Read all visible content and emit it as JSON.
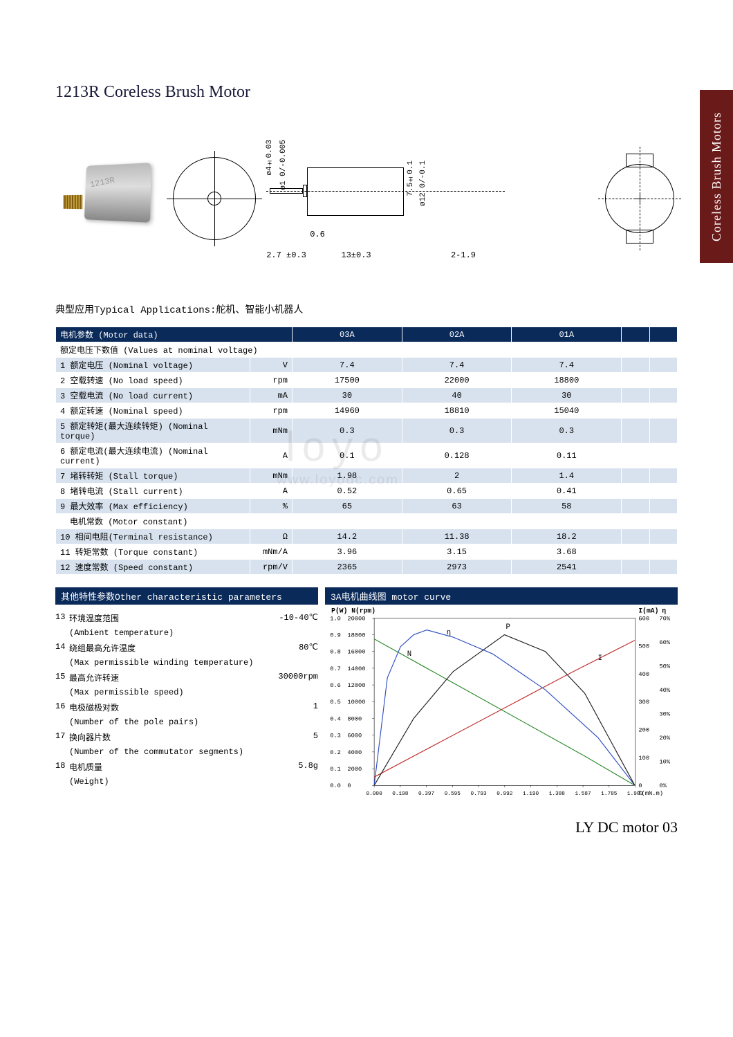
{
  "title": "1213R Coreless Brush Motor",
  "side_tab": "Coreless Brush Motors",
  "applications": "典型应用Typical Applications:舵机、智能小机器人",
  "diagram": {
    "dims": {
      "shaft_dia": "ø4±0.03",
      "shaft_inner": "ø1 0/-0.005",
      "body_height": "7.5±0.1",
      "body_dia": "ø12 0/-0.1",
      "shaft_len": "2.7 ±0.3",
      "step": "0.6",
      "body_len": "13±0.3",
      "tab_len": "2-1.9"
    },
    "motor_marking": "1213R"
  },
  "motor_table": {
    "header": "电机参数 (Motor data)",
    "cols": [
      "03A",
      "02A",
      "01A",
      "",
      ""
    ],
    "section1": "额定电压下数值 (Values at nominal voltage)",
    "rows": [
      {
        "n": "1",
        "label": "额定电压 (Nominal voltage)",
        "unit": "V",
        "v": [
          "7.4",
          "7.4",
          "7.4",
          "",
          ""
        ],
        "shade": true
      },
      {
        "n": "2",
        "label": "空载转速 (No load speed)",
        "unit": "rpm",
        "v": [
          "17500",
          "22000",
          "18800",
          "",
          ""
        ],
        "shade": false
      },
      {
        "n": "3",
        "label": "空载电流 (No load current)",
        "unit": "mA",
        "v": [
          "30",
          "40",
          "30",
          "",
          ""
        ],
        "shade": true
      },
      {
        "n": "4",
        "label": "额定转速 (Nominal speed)",
        "unit": "rpm",
        "v": [
          "14960",
          "18810",
          "15040",
          "",
          ""
        ],
        "shade": false
      },
      {
        "n": "5",
        "label": "额定转矩(最大连续转矩) (Nominal torque)",
        "unit": "mNm",
        "v": [
          "0.3",
          "0.3",
          "0.3",
          "",
          ""
        ],
        "shade": true
      },
      {
        "n": "6",
        "label": "额定电流(最大连续电流) (Nominal current)",
        "unit": "A",
        "v": [
          "0.1",
          "0.128",
          "0.11",
          "",
          ""
        ],
        "shade": false
      },
      {
        "n": "7",
        "label": "堵转转矩 (Stall torque)",
        "unit": "mNm",
        "v": [
          "1.98",
          "2",
          "1.4",
          "",
          ""
        ],
        "shade": true
      },
      {
        "n": "8",
        "label": "堵转电流 (Stall current)",
        "unit": "A",
        "v": [
          "0.52",
          "0.65",
          "0.41",
          "",
          ""
        ],
        "shade": false
      },
      {
        "n": "9",
        "label": "最大效率 (Max efficiency)",
        "unit": "%",
        "v": [
          "65",
          "63",
          "58",
          "",
          ""
        ],
        "shade": true
      }
    ],
    "section2": "电机常数 (Motor constant)",
    "rows2": [
      {
        "n": "10",
        "label": "相间电阻(Terminal resistance)",
        "unit": "Ω",
        "v": [
          "14.2",
          "11.38",
          "18.2",
          "",
          ""
        ],
        "shade": true
      },
      {
        "n": "11",
        "label": "转矩常数 (Torque constant)",
        "unit": "mNm/A",
        "v": [
          "3.96",
          "3.15",
          "3.68",
          "",
          ""
        ],
        "shade": false
      },
      {
        "n": "12",
        "label": "速度常数 (Speed constant)",
        "unit": "rpm/V",
        "v": [
          "2365",
          "2973",
          "2541",
          "",
          ""
        ],
        "shade": true
      }
    ]
  },
  "other_header": "其他特性参数Other characteristic parameters",
  "other_params": [
    {
      "n": "13",
      "zh": "环境温度范围",
      "en": "(Ambient temperature)",
      "val": "-10-40℃"
    },
    {
      "n": "14",
      "zh": "绕组最高允许温度",
      "en": "(Max permissible winding temperature)",
      "val": "80℃"
    },
    {
      "n": "15",
      "zh": "最高允许转速",
      "en": "(Max permissible speed)",
      "val": "30000rpm"
    },
    {
      "n": "16",
      "zh": "电极磁极对数",
      "en": "(Number of the pole pairs)",
      "val": "1"
    },
    {
      "n": "17",
      "zh": "换向器片数",
      "en": "(Number of the commutator segments)",
      "val": "5"
    },
    {
      "n": "18",
      "zh": "电机质量",
      "en": "(Weight)",
      "val": "5.8g"
    }
  ],
  "curve_header": "3A电机曲线图 motor curve",
  "curve": {
    "axes": {
      "p_label": "P(W)",
      "n_label": "N(rpm)",
      "i_label": "I(mA)",
      "eta_label": "η",
      "p_ticks": [
        0,
        0.1,
        0.2,
        0.3,
        0.4,
        0.5,
        0.6,
        0.7,
        0.8,
        0.9,
        1
      ],
      "n_ticks": [
        0,
        2000,
        4000,
        6000,
        8000,
        10000,
        12000,
        14000,
        16000,
        18000,
        20000
      ],
      "i_ticks": [
        0,
        100,
        200,
        300,
        400,
        500,
        600
      ],
      "eta_ticks": [
        "0%",
        "10%",
        "20%",
        "30%",
        "40%",
        "50%",
        "60%",
        "70%"
      ],
      "x_ticks": [
        "0.000",
        "0.198",
        "0.397",
        "0.595",
        "0.793",
        "0.992",
        "1.190",
        "1.388",
        "1.587",
        "1.785",
        "1.983"
      ],
      "x_unit": "T(mN.m)"
    },
    "series": {
      "N": {
        "color": "#2e8b2e",
        "pts": [
          [
            0.0,
            17500
          ],
          [
            0.4,
            14000
          ],
          [
            0.8,
            10500
          ],
          [
            1.2,
            7000
          ],
          [
            1.6,
            3500
          ],
          [
            1.98,
            0
          ]
        ]
      },
      "I": {
        "color": "#c03030",
        "pts": [
          [
            0.0,
            30
          ],
          [
            0.5,
            155
          ],
          [
            1.0,
            280
          ],
          [
            1.5,
            405
          ],
          [
            1.98,
            520
          ]
        ]
      },
      "eta": {
        "color": "#3050c0",
        "pts": [
          [
            0.0,
            0
          ],
          [
            0.1,
            45
          ],
          [
            0.2,
            58
          ],
          [
            0.3,
            63
          ],
          [
            0.4,
            65
          ],
          [
            0.6,
            62
          ],
          [
            0.9,
            55
          ],
          [
            1.3,
            40
          ],
          [
            1.7,
            20
          ],
          [
            1.98,
            0
          ]
        ]
      },
      "P": {
        "color": "#202020",
        "pts": [
          [
            0.0,
            0
          ],
          [
            0.3,
            0.4
          ],
          [
            0.6,
            0.68
          ],
          [
            0.99,
            0.9
          ],
          [
            1.3,
            0.8
          ],
          [
            1.6,
            0.55
          ],
          [
            1.98,
            0
          ]
        ]
      }
    },
    "markers": {
      "N": "N",
      "eta": "η",
      "P": "P",
      "I": "I"
    }
  },
  "watermark": {
    "main": "loyo",
    "sub": "www.loyodc.com"
  },
  "footer": "LY DC motor 03"
}
